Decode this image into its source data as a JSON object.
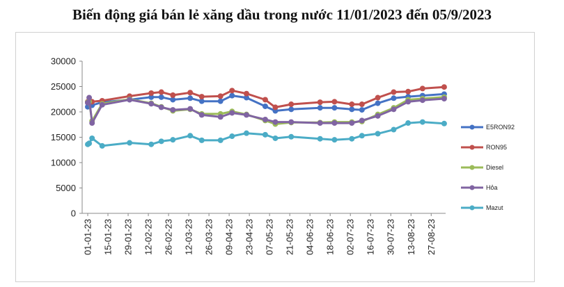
{
  "chart_data": {
    "type": "line",
    "title": "Biến động giá bán lẻ xăng dầu trong nước 11/01/2023 đến 05/9/2023",
    "xlabel": "",
    "ylabel": "",
    "ylim": [
      0,
      30000
    ],
    "yticks": [
      0,
      5000,
      10000,
      15000,
      20000,
      25000,
      30000
    ],
    "xticks": [
      "01-01-23",
      "15-01-23",
      "29-01-23",
      "12-02-23",
      "26-02-23",
      "12-03-23",
      "26-03-23",
      "09-04-23",
      "23-04-23",
      "07-05-23",
      "21-05-23",
      "04-06-23",
      "18-06-23",
      "02-07-23",
      "16-07-23",
      "30-07-23",
      "13-08-23",
      "27-08-23"
    ],
    "x": [
      "01-01-23",
      "02-01-23",
      "04-01-23",
      "11-01-23",
      "30-01-23",
      "14-02-23",
      "21-02-23",
      "01-03-23",
      "13-03-23",
      "21-03-23",
      "03-04-23",
      "11-04-23",
      "21-04-23",
      "04-05-23",
      "11-05-23",
      "22-05-23",
      "11-06-23",
      "21-06-23",
      "03-07-23",
      "10-07-23",
      "21-07-23",
      "01-08-23",
      "11-08-23",
      "21-08-23",
      "05-09-23"
    ],
    "grid": false,
    "legend": "right",
    "series": [
      {
        "name": "E5RON92",
        "color": "#4472C4",
        "values": [
          21000,
          21200,
          21300,
          21900,
          22400,
          22900,
          22900,
          22400,
          22700,
          22100,
          22100,
          23200,
          22800,
          21100,
          20200,
          20500,
          20800,
          20800,
          20500,
          20400,
          21700,
          22700,
          23000,
          23200,
          23500
        ]
      },
      {
        "name": "RON95",
        "color": "#C0504D",
        "values": [
          22000,
          22100,
          22000,
          22200,
          23100,
          23700,
          23900,
          23300,
          23800,
          23000,
          23100,
          24200,
          23600,
          22400,
          20900,
          21500,
          21900,
          22000,
          21500,
          21500,
          22800,
          23900,
          24000,
          24600,
          24900
        ]
      },
      {
        "name": "Diesel",
        "color": "#9BBB59",
        "values": [
          21900,
          22000,
          18200,
          21600,
          22500,
          21700,
          21000,
          20200,
          20500,
          19600,
          19600,
          20100,
          19500,
          18300,
          17600,
          17900,
          17900,
          18000,
          18000,
          18100,
          19500,
          20800,
          22400,
          22600,
          22900
        ]
      },
      {
        "name": "Hỏa",
        "color": "#8064A2",
        "values": [
          21800,
          22800,
          17800,
          21400,
          22400,
          21600,
          20900,
          20400,
          20600,
          19400,
          19000,
          19800,
          19400,
          18500,
          18000,
          18000,
          17800,
          17800,
          17800,
          18300,
          19200,
          20500,
          22000,
          22300,
          22600
        ]
      },
      {
        "name": "Mazut",
        "color": "#4BACC6",
        "values": [
          13600,
          13800,
          14800,
          13300,
          13900,
          13600,
          14200,
          14500,
          15300,
          14400,
          14400,
          15200,
          15800,
          15500,
          14800,
          15100,
          14700,
          14500,
          14700,
          15300,
          15700,
          16500,
          17800,
          18000,
          17700
        ]
      }
    ]
  }
}
